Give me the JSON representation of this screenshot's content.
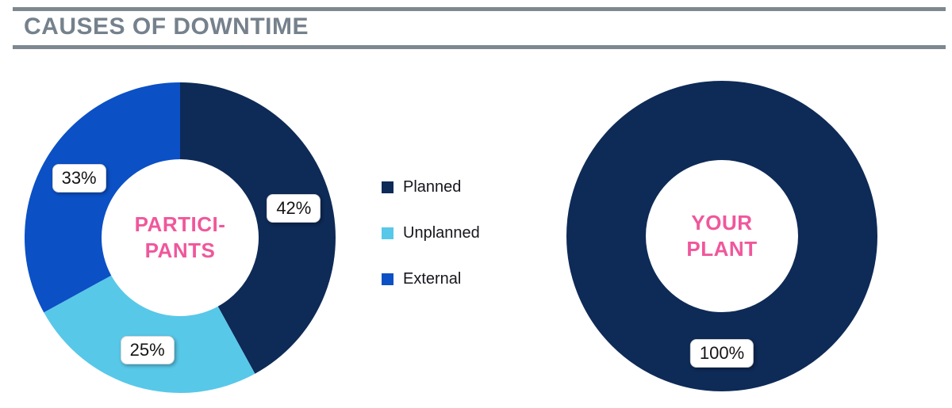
{
  "header": {
    "title": "CAUSES OF DOWNTIME"
  },
  "colors": {
    "planned_navy": "#0e2a57",
    "unplanned_light_blue": "#58c8e9",
    "external_royal_blue": "#0b50c5",
    "accent_pink": "#f0579b",
    "title_gray": "#75818c",
    "separator_gray": "#7d8891"
  },
  "legend": {
    "items": [
      {
        "label": "Planned",
        "color": "#0e2a57"
      },
      {
        "label": "Unplanned",
        "color": "#58c8e9"
      },
      {
        "label": "External",
        "color": "#0b50c5"
      }
    ]
  },
  "chart_data": [
    {
      "type": "pie",
      "subtype": "donut",
      "title": "",
      "center_label_text": "PARTICIPANTS",
      "center_label_lines": [
        "PARTICI-",
        "PANTS"
      ],
      "categories": [
        "Planned",
        "Unplanned",
        "External"
      ],
      "values": [
        42,
        25,
        33
      ],
      "unit": "%",
      "start_angle_deg": 0,
      "direction": "clockwise",
      "legend_position": "right-of-chart",
      "slices": [
        {
          "label": "Planned",
          "value": 42,
          "data_label": "42%",
          "color": "#0e2a57"
        },
        {
          "label": "Unplanned",
          "value": 25,
          "data_label": "25%",
          "color": "#58c8e9"
        },
        {
          "label": "External",
          "value": 33,
          "data_label": "33%",
          "color": "#0b50c5"
        }
      ]
    },
    {
      "type": "pie",
      "subtype": "donut",
      "title": "",
      "center_label_text": "YOUR PLANT",
      "center_label_lines": [
        "YOUR",
        "PLANT"
      ],
      "categories": [
        "Planned"
      ],
      "values": [
        100
      ],
      "unit": "%",
      "start_angle_deg": 0,
      "direction": "clockwise",
      "legend_position": "none",
      "slices": [
        {
          "label": "Planned",
          "value": 100,
          "data_label": "100%",
          "color": "#0e2a57"
        }
      ]
    }
  ]
}
